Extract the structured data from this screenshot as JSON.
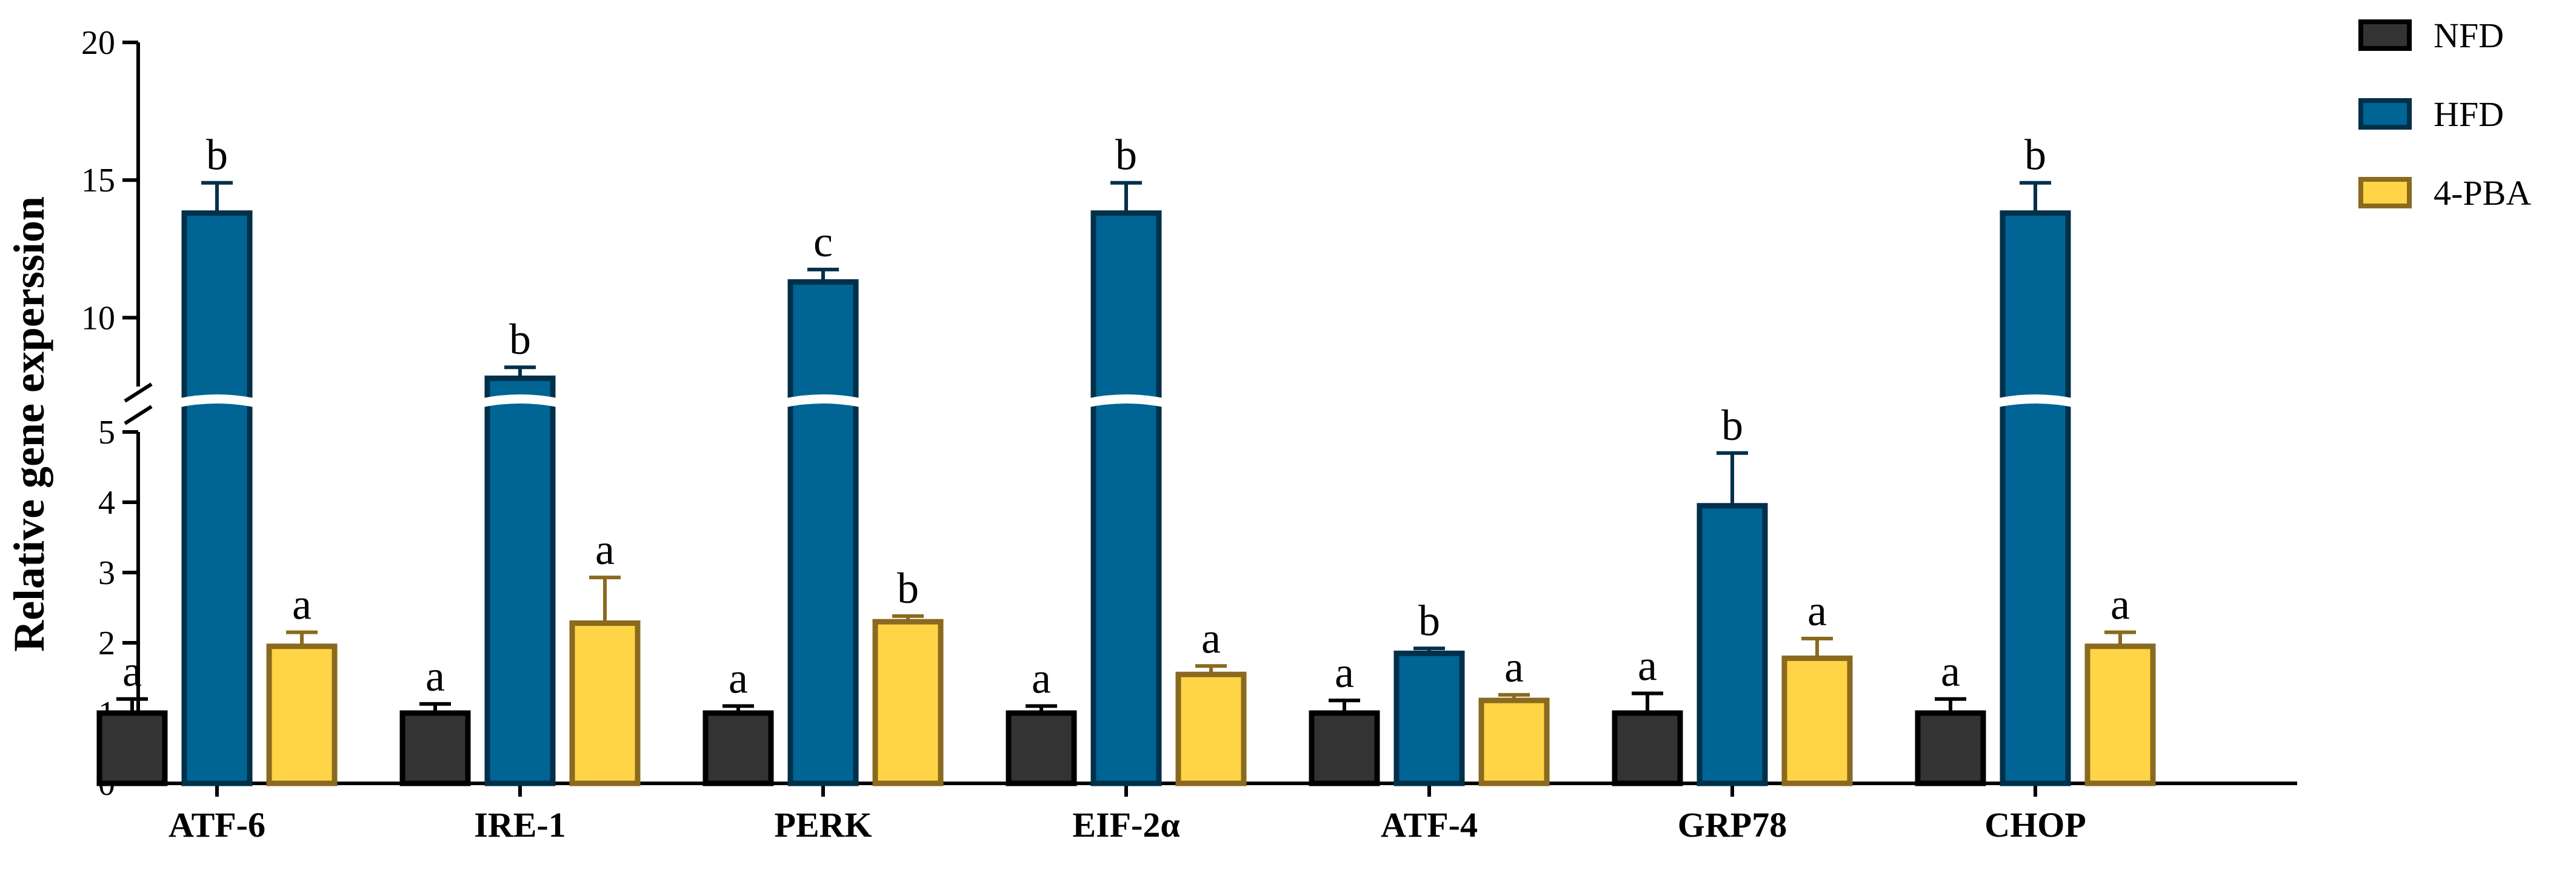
{
  "chart_data": {
    "type": "bar",
    "ylabel": "Relative gene experssion",
    "categories": [
      "ATF-6",
      "IRE-1",
      "PERK",
      "EIF-2α",
      "ATF-4",
      "GRP78",
      "CHOP"
    ],
    "y_axis_break": {
      "lower_range": [
        0,
        5
      ],
      "upper_range": [
        7.5,
        20
      ]
    },
    "y_ticks_lower": [
      "0",
      "1",
      "2",
      "3",
      "4",
      "5"
    ],
    "y_ticks_upper": [
      "10",
      "15",
      "20"
    ],
    "legend_position": "top-right",
    "series": [
      {
        "name": "NFD",
        "color": "#333333",
        "edge": "#000000",
        "values": [
          1.0,
          1.0,
          1.0,
          1.0,
          1.0,
          1.0,
          1.0
        ],
        "errors": [
          0.2,
          0.13,
          0.1,
          0.1,
          0.18,
          0.28,
          0.2
        ],
        "labels": [
          "a",
          "a",
          "a",
          "a",
          "a",
          "a",
          "a"
        ]
      },
      {
        "name": "HFD",
        "color": "#006494",
        "edge": "#00304a",
        "values": [
          13.8,
          7.8,
          11.3,
          13.8,
          1.85,
          3.95,
          13.8
        ],
        "errors": [
          1.1,
          0.4,
          0.45,
          1.1,
          0.07,
          0.75,
          1.1
        ],
        "labels": [
          "b",
          "b",
          "c",
          "b",
          "b",
          "b",
          "b"
        ]
      },
      {
        "name": "4-PBA",
        "color": "#ffd447",
        "edge": "#8a6a1f",
        "values": [
          1.95,
          2.28,
          2.3,
          1.55,
          1.18,
          1.78,
          1.95
        ],
        "errors": [
          0.2,
          0.65,
          0.08,
          0.12,
          0.08,
          0.28,
          0.2
        ],
        "labels": [
          "a",
          "a",
          "b",
          "a",
          "a",
          "a",
          "a"
        ]
      }
    ]
  }
}
